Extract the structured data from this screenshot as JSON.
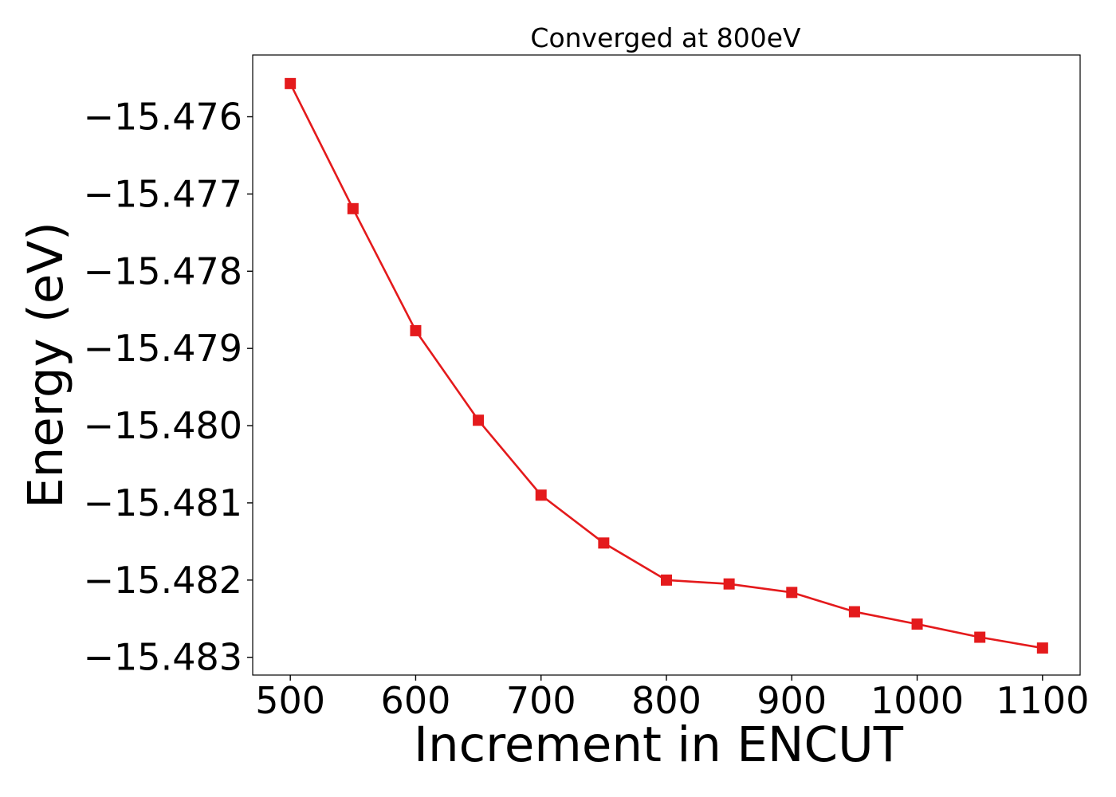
{
  "chart_data": {
    "type": "line",
    "title": "Converged at 800eV",
    "xlabel": "Increment in ENCUT",
    "ylabel": "Energy (eV)",
    "x": [
      500,
      550,
      600,
      650,
      700,
      750,
      800,
      850,
      900,
      950,
      1000,
      1050,
      1100
    ],
    "series": [
      {
        "values": [
          -15.47557,
          -15.47719,
          -15.47877,
          -15.47993,
          -15.4809,
          -15.48152,
          -15.482,
          -15.48205,
          -15.48216,
          -15.48241,
          -15.48257,
          -15.48274,
          -15.48288
        ],
        "color": "#e41a1c",
        "marker": "square"
      }
    ],
    "xlim": [
      470,
      1130
    ],
    "ylim": [
      -15.48323,
      -15.4752
    ],
    "xticks": [
      500,
      600,
      700,
      800,
      900,
      1000,
      1100
    ],
    "xtick_labels": [
      "500",
      "600",
      "700",
      "800",
      "900",
      "1000",
      "1100"
    ],
    "yticks": [
      -15.476,
      -15.477,
      -15.478,
      -15.479,
      -15.48,
      -15.481,
      -15.482,
      -15.483
    ],
    "ytick_labels": [
      "−15.476",
      "−15.477",
      "−15.478",
      "−15.479",
      "−15.480",
      "−15.481",
      "−15.482",
      "−15.483"
    ],
    "grid": false,
    "legend": "none"
  }
}
